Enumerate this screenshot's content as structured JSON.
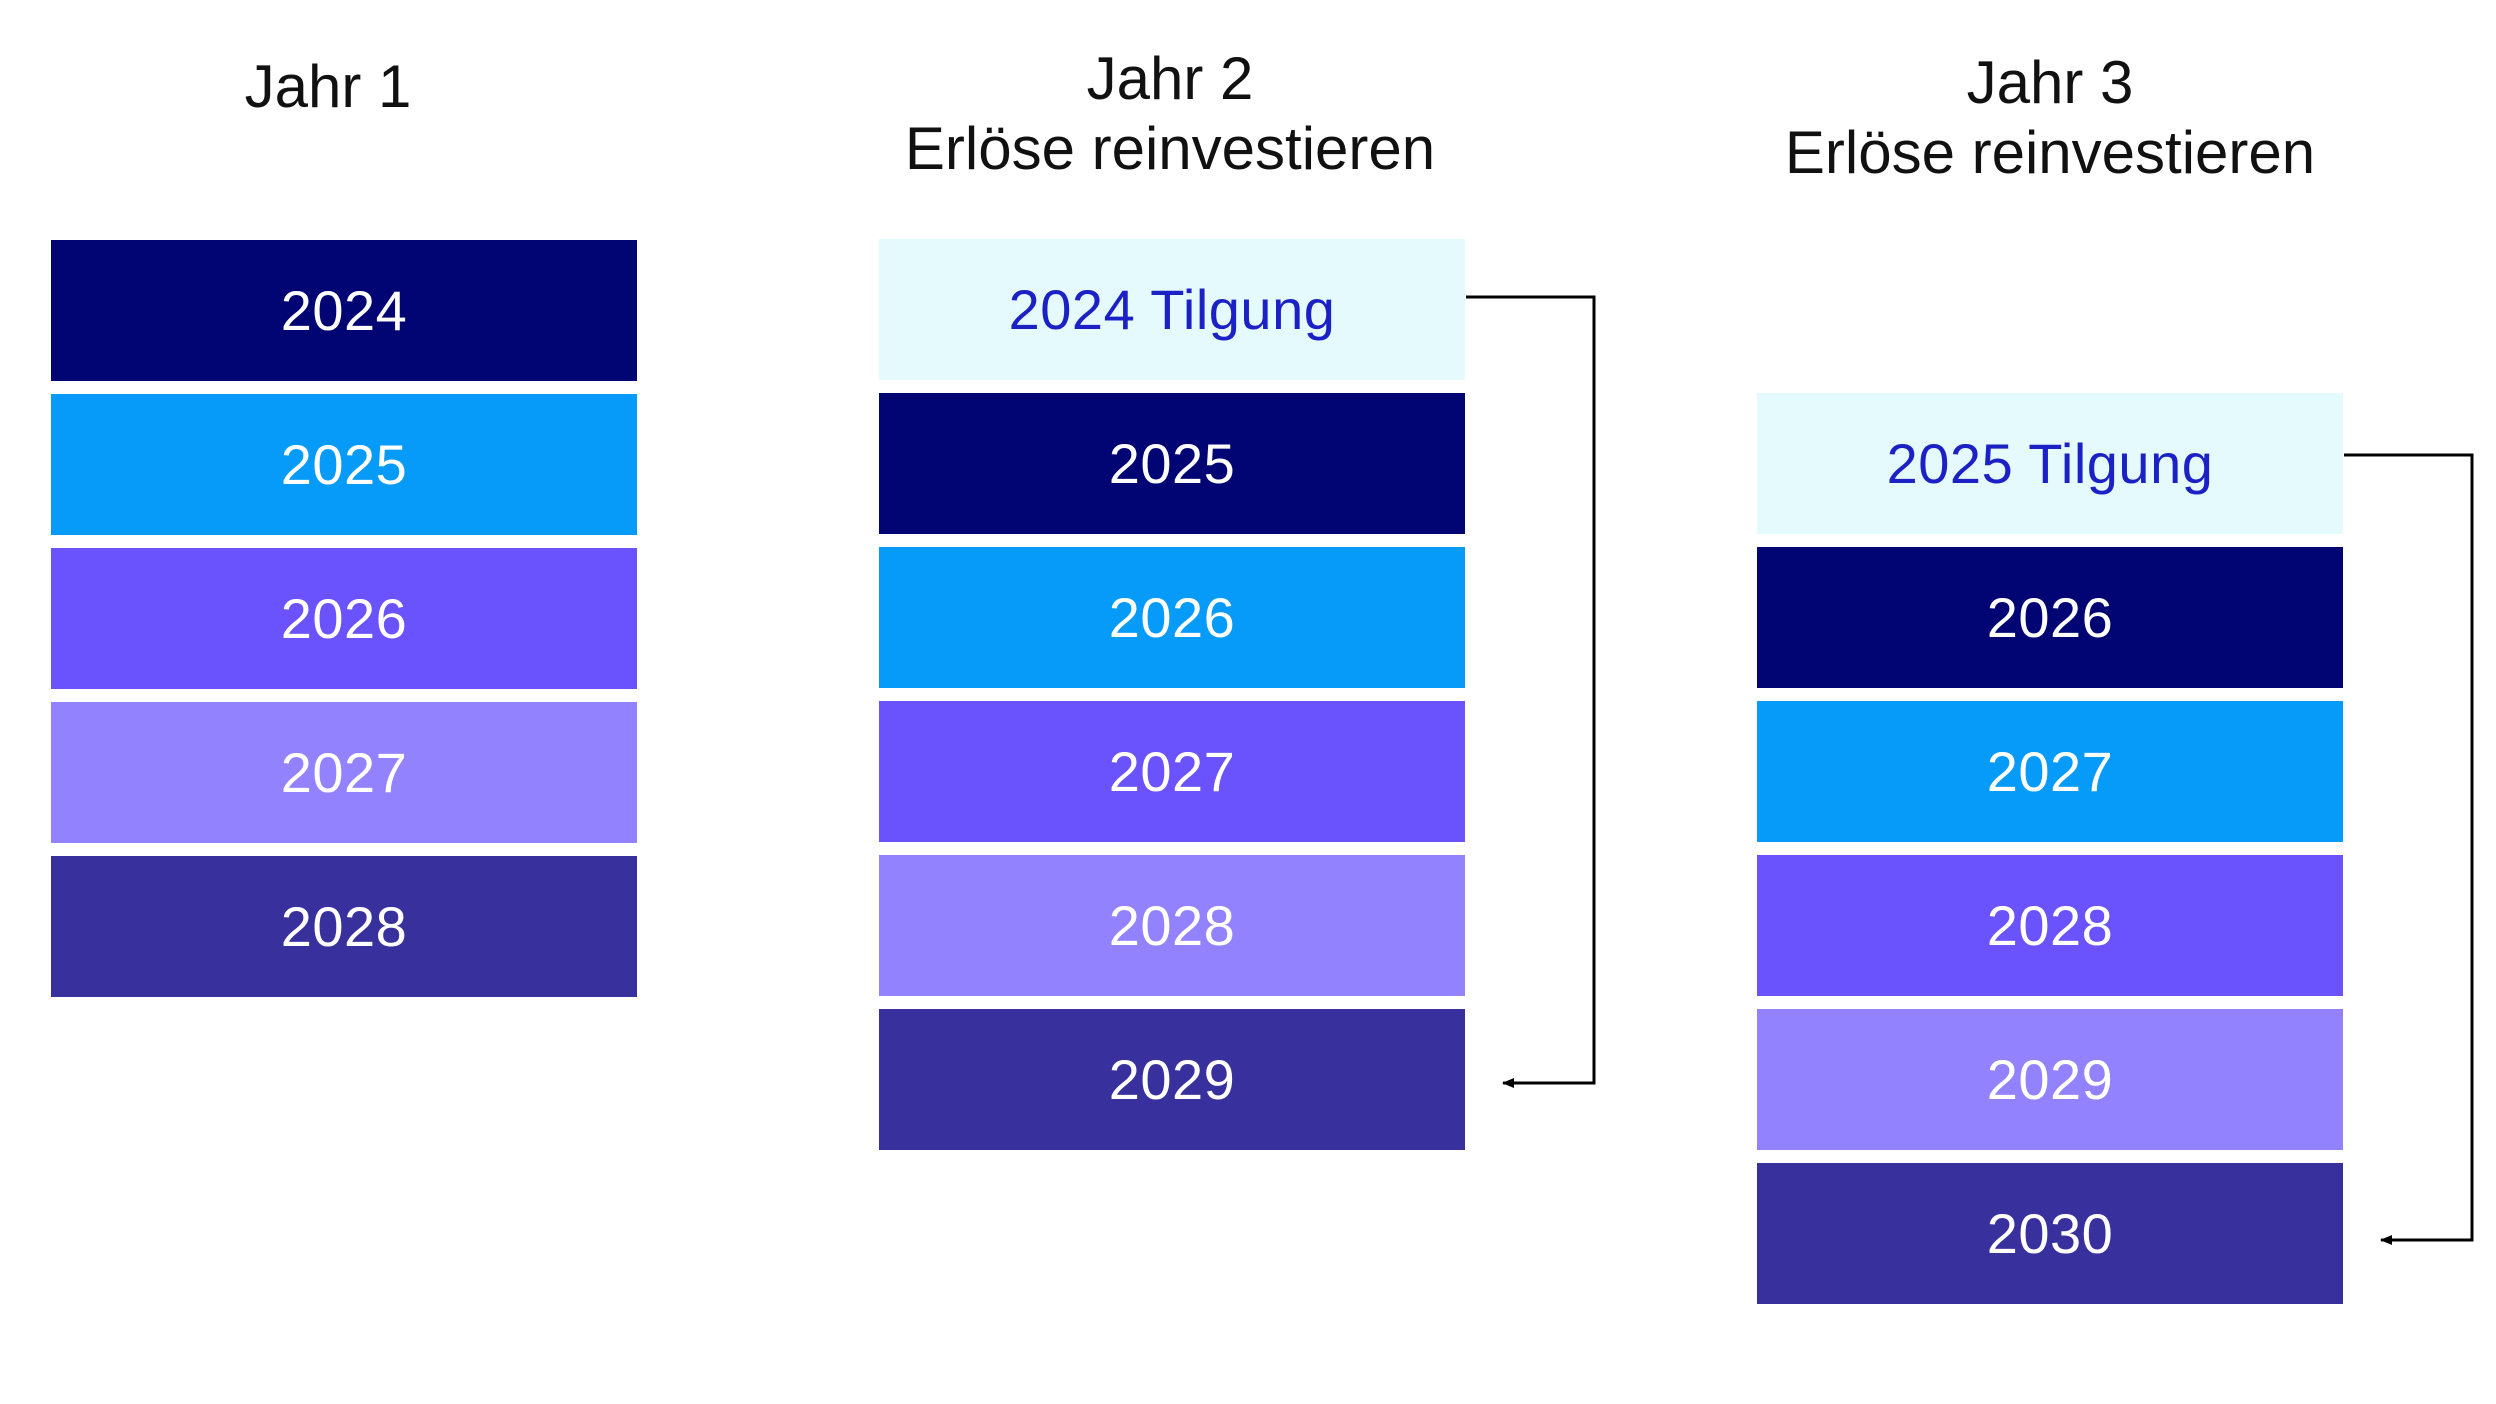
{
  "columns": [
    {
      "title": "Jahr 1",
      "subtitle": "",
      "blocks": [
        {
          "label": "2024",
          "kind": "navy"
        },
        {
          "label": "2025",
          "kind": "sky"
        },
        {
          "label": "2026",
          "kind": "violet"
        },
        {
          "label": "2027",
          "kind": "lilac"
        },
        {
          "label": "2028",
          "kind": "indigo"
        }
      ]
    },
    {
      "title": "Jahr 2",
      "subtitle": "Erlöse reinvestieren",
      "blocks": [
        {
          "label": "2024 Tilgung",
          "kind": "repay"
        },
        {
          "label": "2025",
          "kind": "navy"
        },
        {
          "label": "2026",
          "kind": "sky"
        },
        {
          "label": "2027",
          "kind": "violet"
        },
        {
          "label": "2028",
          "kind": "lilac"
        },
        {
          "label": "2029",
          "kind": "indigo"
        }
      ]
    },
    {
      "title": "Jahr 3",
      "subtitle": "Erlöse reinvestieren",
      "blocks": [
        {
          "label": "2025 Tilgung",
          "kind": "repay"
        },
        {
          "label": "2026",
          "kind": "navy"
        },
        {
          "label": "2027",
          "kind": "sky"
        },
        {
          "label": "2028",
          "kind": "violet"
        },
        {
          "label": "2029",
          "kind": "lilac"
        },
        {
          "label": "2030",
          "kind": "indigo"
        }
      ]
    }
  ],
  "colors": {
    "navy": "#000573",
    "sky": "#069bf9",
    "violet": "#6a52fc",
    "lilac": "#9382fe",
    "indigo": "#38319d",
    "repay_fill": "#e5fafd",
    "repay_text": "#1b21c4",
    "connector": "#000000"
  }
}
